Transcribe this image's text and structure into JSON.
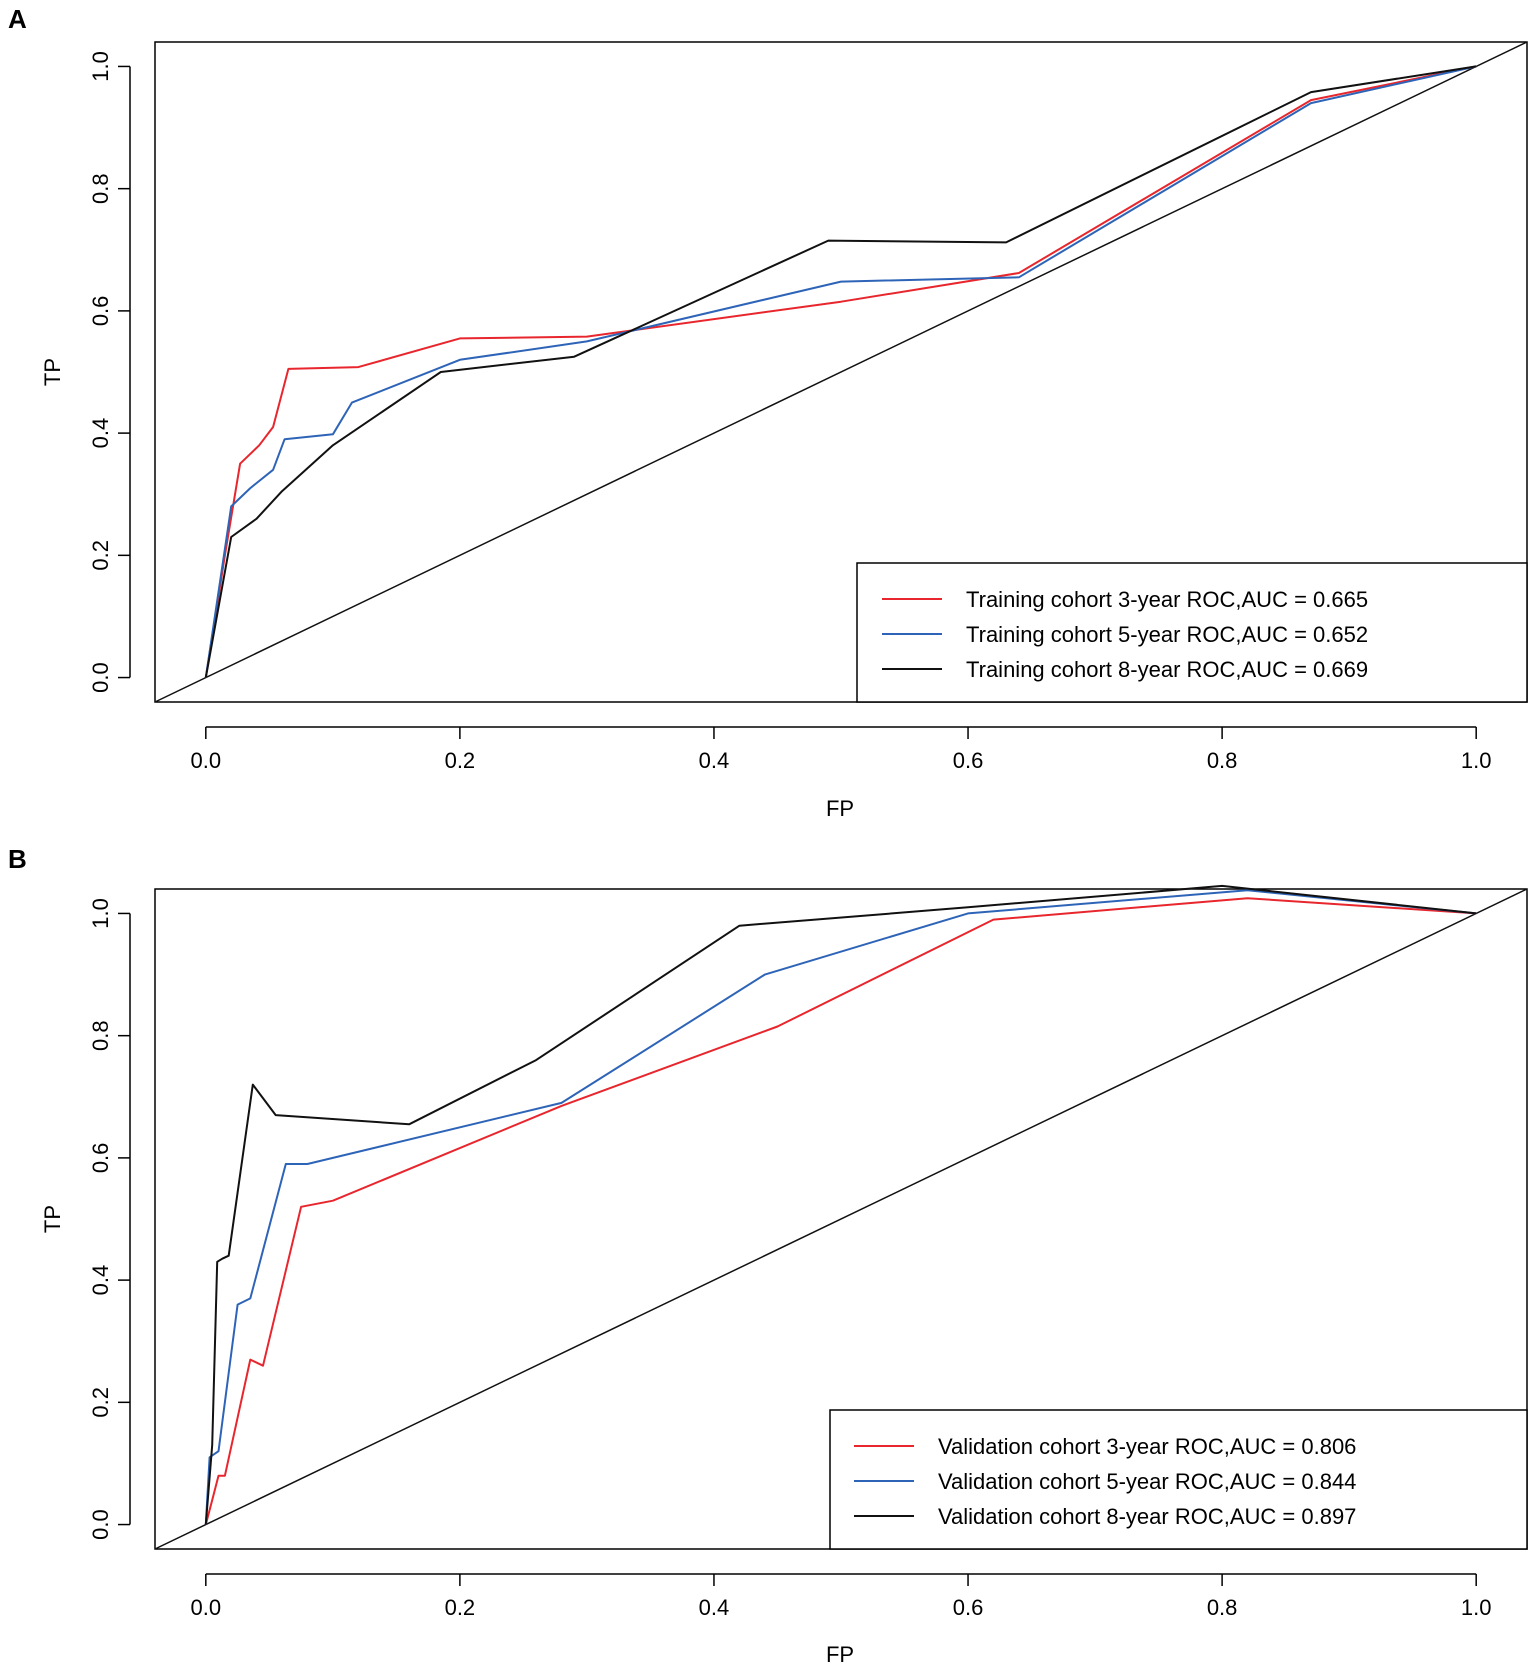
{
  "chart_data": [
    {
      "type": "line",
      "panel": "A",
      "xlabel": "FP",
      "ylabel": "TP",
      "xlim": [
        -0.04,
        1.04
      ],
      "ylim": [
        -0.04,
        1.04
      ],
      "xticks": [
        "0.0",
        "0.2",
        "0.4",
        "0.6",
        "0.8",
        "1.0"
      ],
      "yticks": [
        "0.0",
        "0.2",
        "0.4",
        "0.6",
        "0.8",
        "1.0"
      ],
      "legend_position": "bottom-right",
      "series": [
        {
          "name": "Training cohort 3-year ROC,AUC = 0.665",
          "color": "#e8262d",
          "x": [
            0,
            0.015,
            0.027,
            0.042,
            0.053,
            0.065,
            0.12,
            0.2,
            0.3,
            0.5,
            0.64,
            0.87,
            1.0
          ],
          "y": [
            0,
            0.2,
            0.35,
            0.38,
            0.41,
            0.505,
            0.508,
            0.555,
            0.558,
            0.615,
            0.662,
            0.945,
            1.0
          ]
        },
        {
          "name": "Training cohort 5-year ROC,AUC = 0.652",
          "color": "#2e64b7",
          "x": [
            0,
            0.02,
            0.035,
            0.053,
            0.062,
            0.1,
            0.115,
            0.2,
            0.3,
            0.5,
            0.64,
            0.87,
            1.0
          ],
          "y": [
            0,
            0.28,
            0.31,
            0.34,
            0.39,
            0.398,
            0.45,
            0.52,
            0.55,
            0.648,
            0.655,
            0.94,
            1.0
          ]
        },
        {
          "name": "Training cohort 8-year ROC,AUC = 0.669",
          "color": "#111111",
          "x": [
            0,
            0.02,
            0.04,
            0.06,
            0.1,
            0.185,
            0.29,
            0.49,
            0.63,
            0.87,
            1.0
          ],
          "y": [
            0,
            0.23,
            0.26,
            0.305,
            0.38,
            0.5,
            0.525,
            0.715,
            0.712,
            0.958,
            1.0
          ]
        }
      ],
      "reference_line": {
        "x": [
          -0.04,
          1.04
        ],
        "y": [
          -0.04,
          1.04
        ],
        "color": "#111111"
      }
    },
    {
      "type": "line",
      "panel": "B",
      "xlabel": "FP",
      "ylabel": "TP",
      "xlim": [
        -0.04,
        1.04
      ],
      "ylim": [
        -0.04,
        1.04
      ],
      "xticks": [
        "0.0",
        "0.2",
        "0.4",
        "0.6",
        "0.8",
        "1.0"
      ],
      "yticks": [
        "0.0",
        "0.2",
        "0.4",
        "0.6",
        "0.8",
        "1.0"
      ],
      "legend_position": "bottom-right",
      "series": [
        {
          "name": "Validation cohort 3-year ROC,AUC = 0.806",
          "color": "#e8262d",
          "x": [
            0,
            0.005,
            0.01,
            0.015,
            0.035,
            0.045,
            0.075,
            0.1,
            0.28,
            0.45,
            0.62,
            0.82,
            1.0
          ],
          "y": [
            0,
            0.04,
            0.08,
            0.08,
            0.27,
            0.26,
            0.52,
            0.53,
            0.685,
            0.815,
            0.99,
            1.025,
            1.0
          ]
        },
        {
          "name": "Validation cohort 5-year ROC,AUC = 0.844",
          "color": "#2e64b7",
          "x": [
            0,
            0.003,
            0.01,
            0.025,
            0.035,
            0.063,
            0.08,
            0.28,
            0.44,
            0.6,
            0.82,
            1.0
          ],
          "y": [
            0,
            0.11,
            0.12,
            0.36,
            0.37,
            0.59,
            0.59,
            0.69,
            0.9,
            1.0,
            1.038,
            1.0
          ]
        },
        {
          "name": "Validation cohort 8-year ROC,AUC = 0.897",
          "color": "#111111",
          "x": [
            0,
            0.005,
            0.009,
            0.013,
            0.018,
            0.037,
            0.055,
            0.16,
            0.26,
            0.42,
            0.6,
            0.8,
            1.0
          ],
          "y": [
            0,
            0.13,
            0.43,
            0.435,
            0.44,
            0.72,
            0.67,
            0.655,
            0.76,
            0.98,
            1.01,
            1.045,
            1.0
          ]
        }
      ],
      "reference_line": {
        "x": [
          -0.04,
          1.04
        ],
        "y": [
          -0.04,
          1.04
        ],
        "color": "#111111"
      }
    }
  ]
}
